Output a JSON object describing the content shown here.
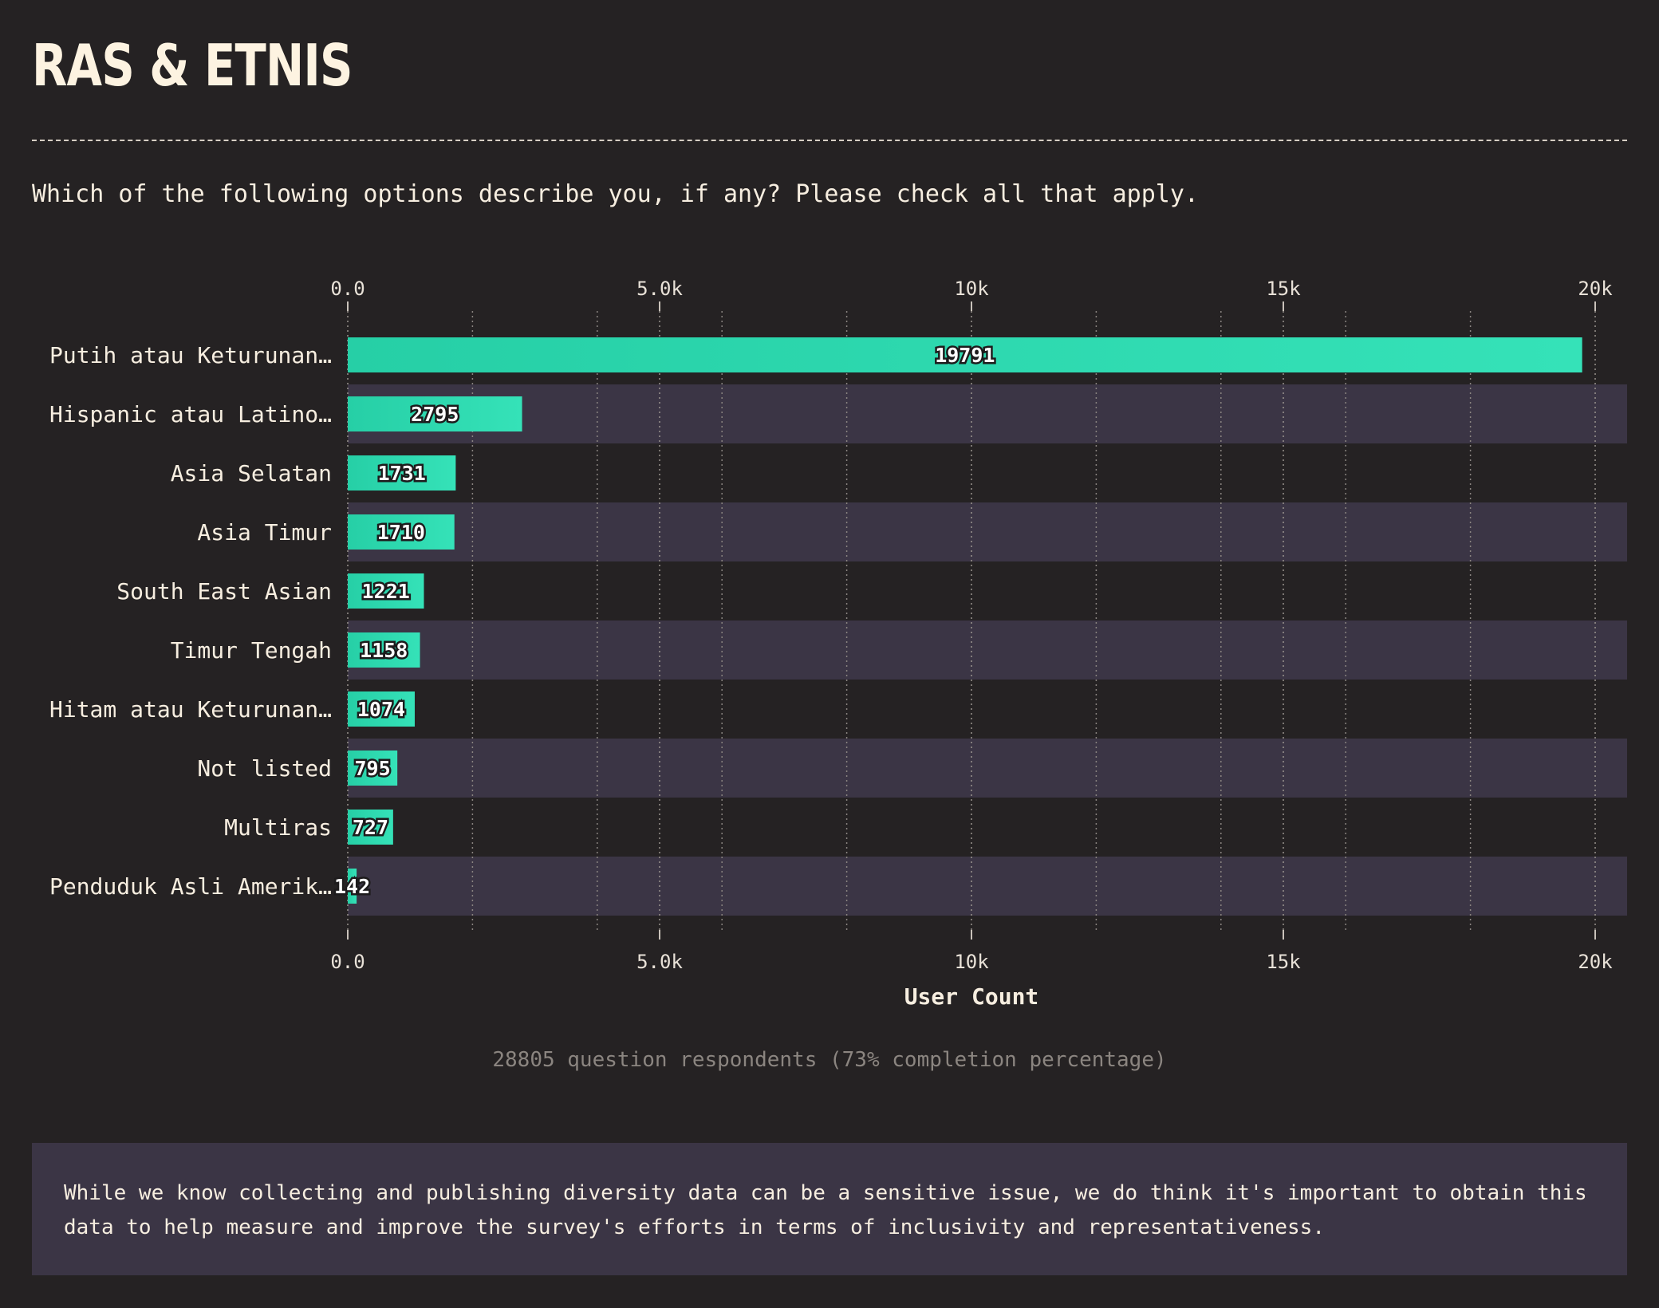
{
  "page": {
    "title": "RAS & ETNIS",
    "question": "Which of the following options describe you, if any? Please check all that apply.",
    "respondents": "28805 question respondents (73% completion percentage)",
    "note": "While we know collecting and publishing diversity data can be a sensitive issue, we do think it's important to obtain this data to help measure and improve the survey's efforts in terms of inclusivity and representativeness."
  },
  "chart_data": {
    "type": "bar",
    "orientation": "horizontal",
    "categories": [
      "Putih atau Keturunan…",
      "Hispanic atau Latino…",
      "Asia Selatan",
      "Asia Timur",
      "South East Asian",
      "Timur Tengah",
      "Hitam atau Keturunan…",
      "Not listed",
      "Multiras",
      "Penduduk Asli Amerik…"
    ],
    "values": [
      19791,
      2795,
      1731,
      1710,
      1221,
      1158,
      1074,
      795,
      727,
      142
    ],
    "xlabel": "User Count",
    "ylabel": "",
    "xlim": [
      0,
      20500
    ],
    "xticks": [
      0,
      5000,
      10000,
      15000,
      20000
    ],
    "xtick_labels": [
      "0.0",
      "5.0k",
      "10k",
      "15k",
      "20k"
    ],
    "minor_gridlines": [
      2000,
      4000,
      6000,
      8000,
      12000,
      14000,
      16000,
      18000
    ],
    "grid": true,
    "ticks_top_and_bottom": true,
    "colors": {
      "bar": "#2ed7ae",
      "bar_light": "#33e3b8",
      "stripe": "#3b3545",
      "background": "#252223"
    }
  }
}
